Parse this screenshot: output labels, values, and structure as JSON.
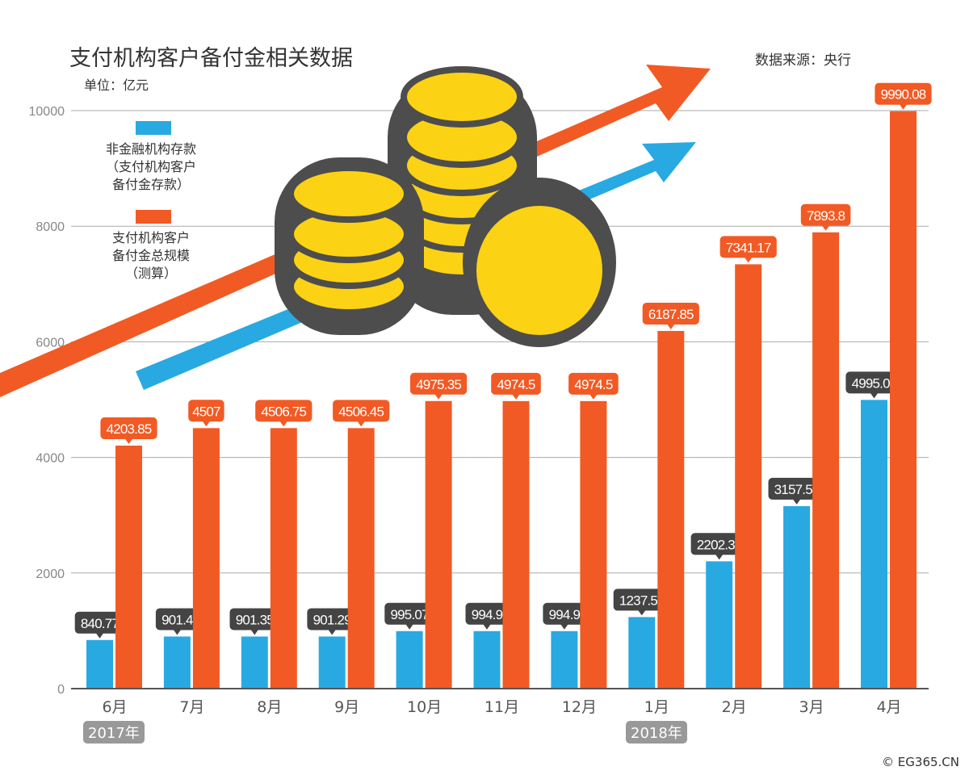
{
  "chart_data": {
    "type": "bar",
    "title": "支付机构客户备付金相关数据",
    "subtitle": "单位：亿元",
    "source": "数据来源：央行",
    "categories": [
      "6月",
      "7月",
      "8月",
      "9月",
      "10月",
      "11月",
      "12月",
      "1月",
      "2月",
      "3月",
      "4月"
    ],
    "year_labels": [
      {
        "label": "2017年",
        "category_index": 0
      },
      {
        "label": "2018年",
        "category_index": 7
      }
    ],
    "series": [
      {
        "name": "非金融机构存款\n（支付机构客户\n备付金存款）",
        "color": "#29a9e1",
        "label_bg": "#444444",
        "values": [
          840.77,
          901.4,
          901.35,
          901.29,
          995.07,
          994.9,
          994.9,
          1237.57,
          2202.35,
          3157.52,
          4995.04
        ],
        "labels": [
          "840.77",
          "901.4",
          "901.35",
          "901.29",
          "995.07",
          "994.9",
          "994.9",
          "1237.57",
          "2202.35",
          "3157.52",
          "4995.04"
        ]
      },
      {
        "name": "支付机构客户\n备付金总规模\n（测算）",
        "color": "#f15a24",
        "label_bg": "#f15a24",
        "values": [
          4203.85,
          4507,
          4506.75,
          4506.45,
          4975.35,
          4974.5,
          4974.5,
          6187.85,
          7341.17,
          7893.8,
          9990.08
        ],
        "labels": [
          "4203.85",
          "4507",
          "4506.75",
          "4506.45",
          "4975.35",
          "4974.5",
          "4974.5",
          "6187.85",
          "7341.17",
          "7893.8",
          "9990.08"
        ]
      }
    ],
    "ylim": [
      0,
      10000
    ],
    "yticks": [
      "0",
      "2000",
      "4000",
      "6000",
      "8000",
      "10000"
    ],
    "grid": true,
    "legend": "top-left"
  },
  "copyright": "© EG365.CN"
}
